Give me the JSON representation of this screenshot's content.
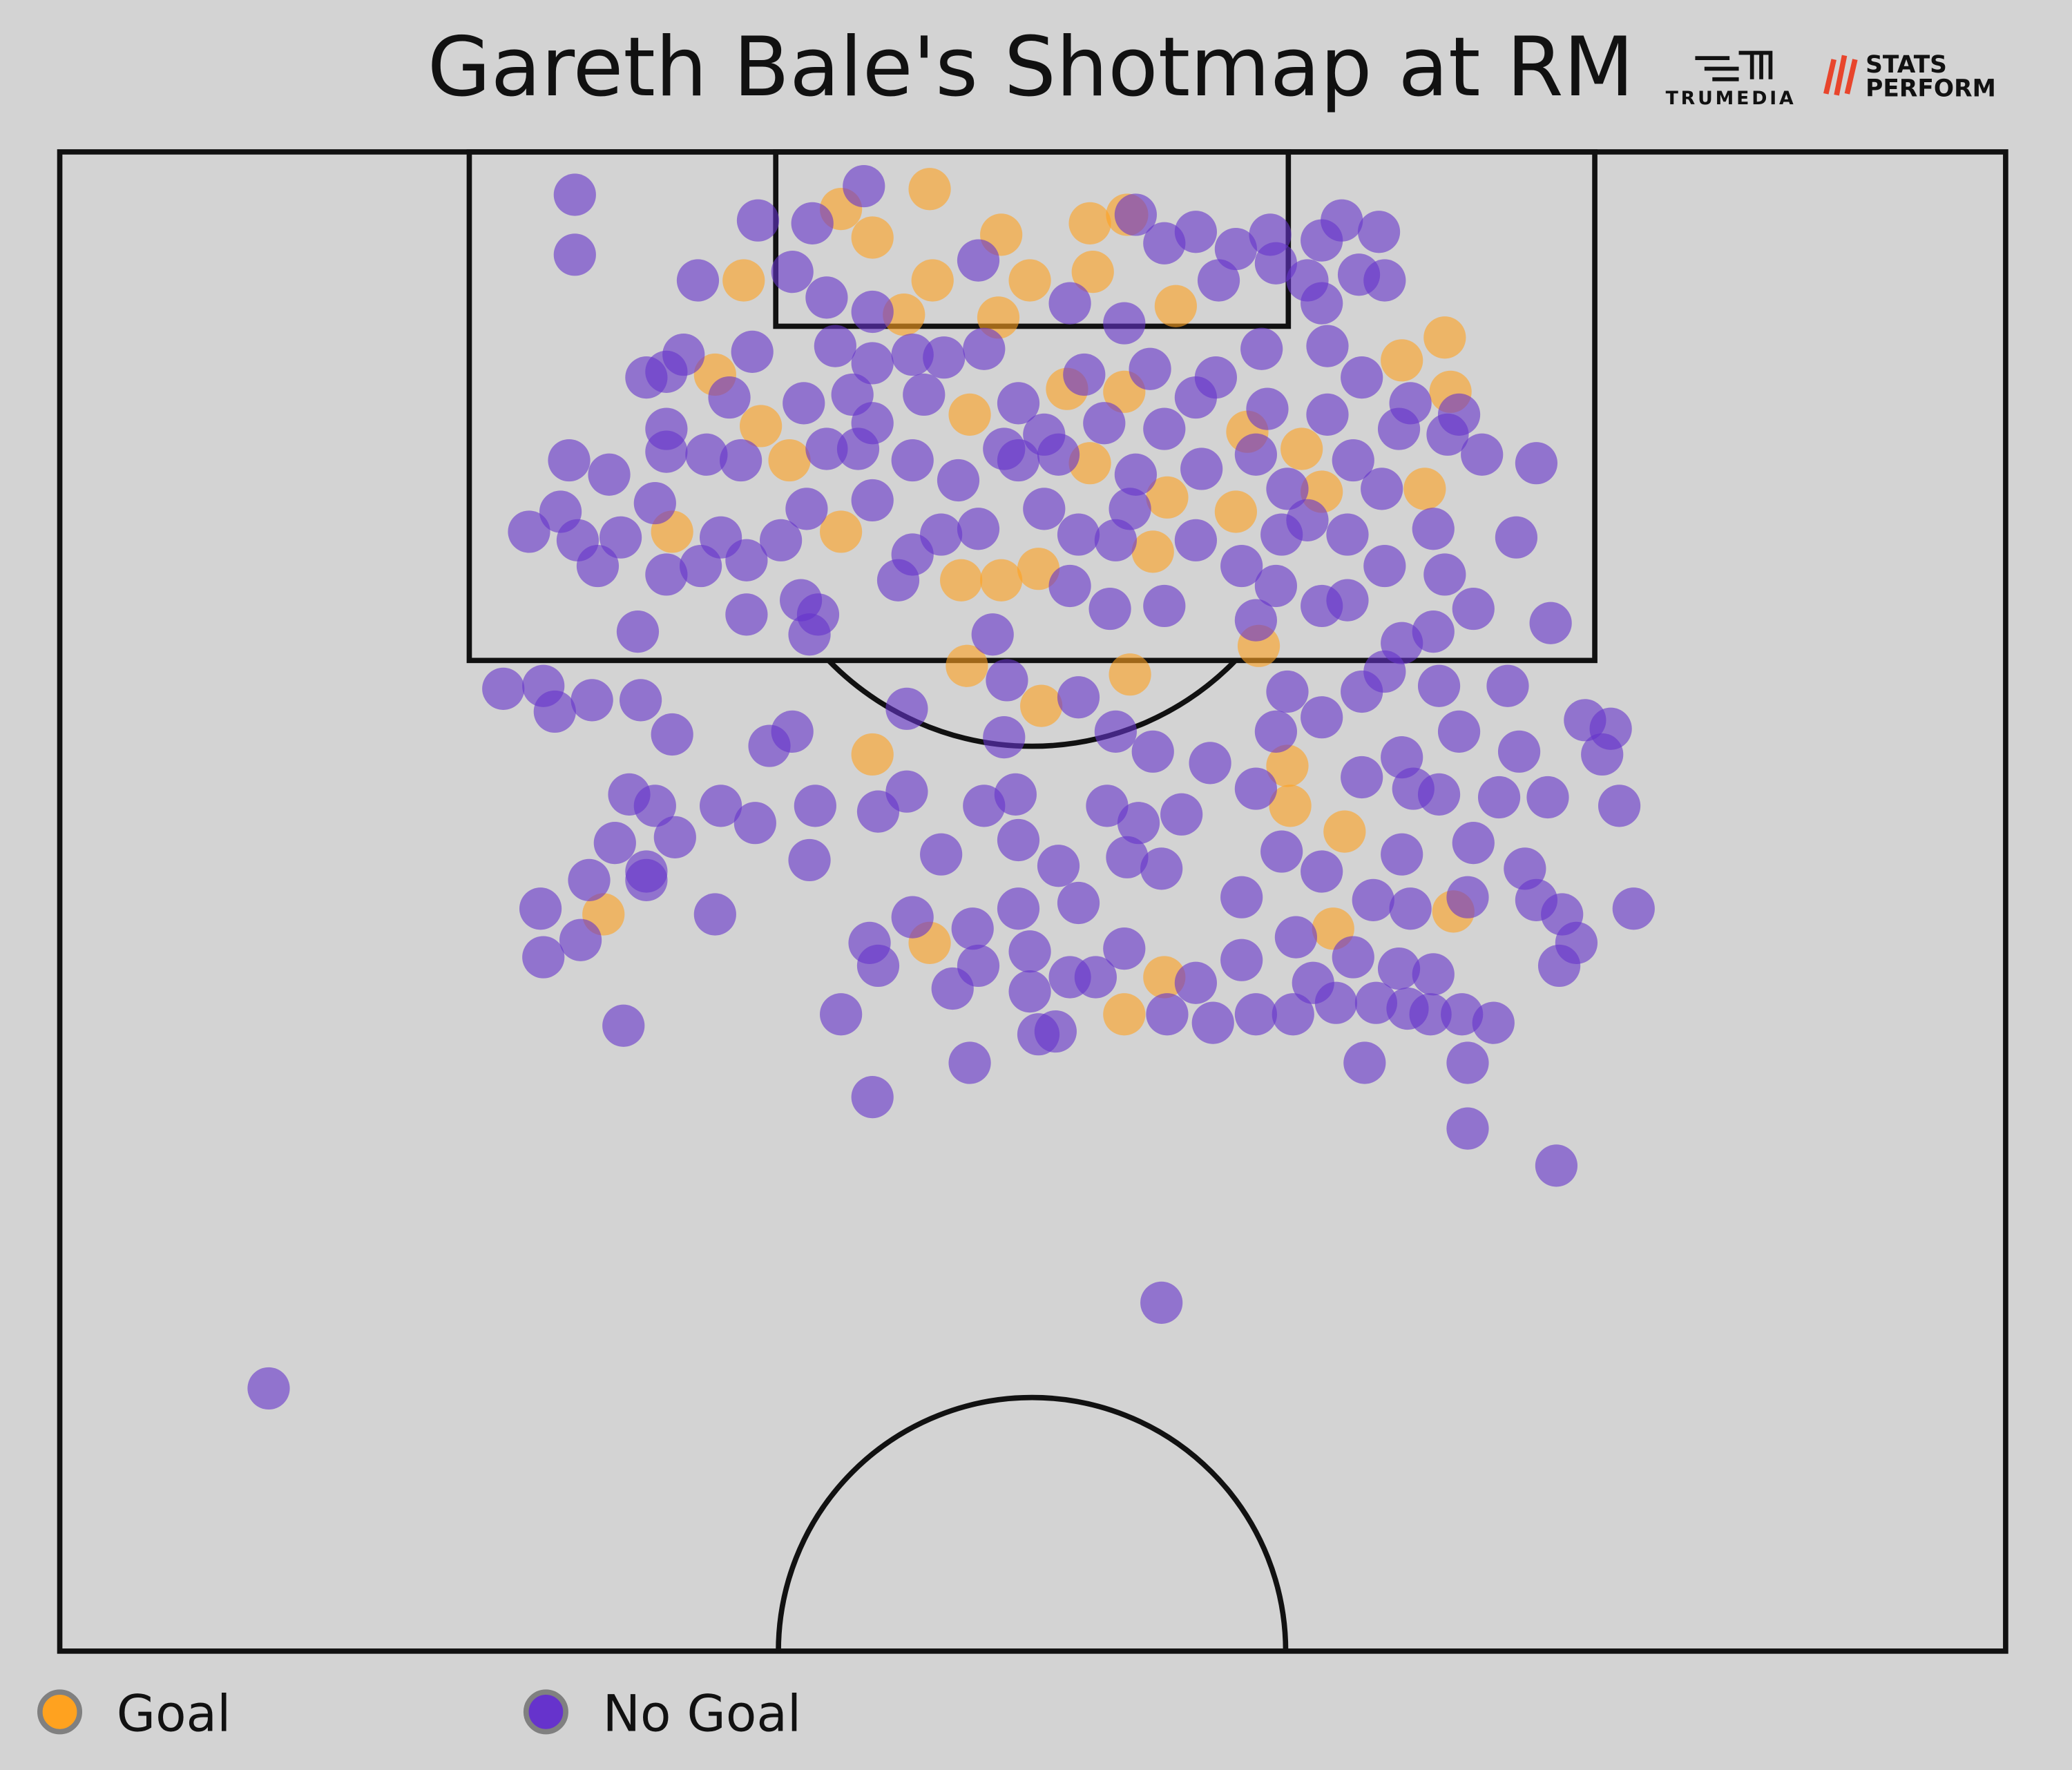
{
  "chart_data": {
    "type": "scatter",
    "title": "Gareth Bale's Shotmap at RM",
    "logo_texts": [
      "TRUMEDIA",
      "STATS",
      "PERFORM"
    ],
    "xlim": [
      0,
      68
    ],
    "ylim": [
      0,
      52.5
    ],
    "series": [
      {
        "name": "Goal",
        "color": "#ffa21f",
        "x": [
          30.4,
          27.3,
          28.4,
          32.9,
          36.0,
          37.3,
          30.5,
          33.9,
          36.1,
          23.9,
          29.5,
          32.8,
          39.0,
          48.4,
          46.9,
          48.6,
          22.9,
          24.5,
          25.5,
          31.8,
          35.2,
          37.2,
          41.5,
          43.4,
          44.1,
          36.0,
          38.7,
          41.1,
          47.7,
          21.4,
          27.3,
          31.5,
          32.9,
          34.2,
          38.2,
          41.9,
          31.7,
          37.4,
          28.4,
          42.9,
          43.0,
          44.9,
          19.0,
          30.4,
          44.5,
          38.6,
          37.2,
          48.7,
          34.3
        ],
        "y": [
          1.3,
          2.0,
          3.0,
          2.9,
          2.5,
          2.2,
          4.5,
          4.5,
          4.2,
          4.5,
          5.7,
          5.8,
          5.4,
          6.5,
          7.3,
          8.4,
          7.8,
          9.6,
          10.8,
          9.2,
          8.3,
          8.4,
          9.8,
          10.4,
          11.9,
          10.9,
          12.1,
          12.6,
          11.8,
          13.3,
          13.3,
          15.0,
          15.0,
          14.6,
          14.0,
          17.3,
          18.0,
          18.3,
          21.1,
          21.5,
          22.9,
          23.8,
          26.7,
          27.7,
          27.2,
          28.9,
          30.2,
          26.6,
          19.4
        ]
      },
      {
        "name": "No Goal",
        "color": "#6633cc",
        "x": [
          18.0,
          18.0,
          28.1,
          24.4,
          26.3,
          25.6,
          26.8,
          22.3,
          37.6,
          38.6,
          39.7,
          41.1,
          42.3,
          44.1,
          44.8,
          46.1,
          42.5,
          40.5,
          43.6,
          45.4,
          46.3,
          44.1,
          32.1,
          35.3,
          37.2,
          28.4,
          20.5,
          21.2,
          21.8,
          24.2,
          27.1,
          28.4,
          29.8,
          30.9,
          32.3,
          35.8,
          38.1,
          40.4,
          42.0,
          44.3,
          45.5,
          47.2,
          48.9,
          23.4,
          26.0,
          27.7,
          28.4,
          30.2,
          33.5,
          34.4,
          33.0,
          36.5,
          38.6,
          39.7,
          42.2,
          44.3,
          46.8,
          48.5,
          21.2,
          21.2,
          22.6,
          23.8,
          26.8,
          27.9,
          29.8,
          31.4,
          33.5,
          34.9,
          37.6,
          39.9,
          41.8,
          42.9,
          45.2,
          46.2,
          49.7,
          51.6,
          17.8,
          19.2,
          17.5,
          16.4,
          18.1,
          19.6,
          20.8,
          18.8,
          21.2,
          22.4,
          23.1,
          25.2,
          24.0,
          26.1,
          28.4,
          29.8,
          30.8,
          32.1,
          34.4,
          35.6,
          36.9,
          37.4,
          39.7,
          41.3,
          42.7,
          43.6,
          45.0,
          46.3,
          48.0,
          48.4,
          50.9,
          24.0,
          25.9,
          26.5,
          20.2,
          29.3,
          35.3,
          36.7,
          38.6,
          42.5,
          44.1,
          45.0,
          49.4,
          52.1,
          26.2,
          32.6,
          41.8,
          48.0,
          46.9,
          15.5,
          16.9,
          17.3,
          18.6,
          20.3,
          21.4,
          24.8,
          25.6,
          29.6,
          33.1,
          35.6,
          33.0,
          36.9,
          38.2,
          40.2,
          42.9,
          44.1,
          45.5,
          46.3,
          48.2,
          50.6,
          48.9,
          51.0,
          53.3,
          54.2,
          53.9,
          46.9,
          45.5,
          42.5,
          41.8,
          19.9,
          20.8,
          23.1,
          24.3,
          26.4,
          28.6,
          29.6,
          32.3,
          33.4,
          36.6,
          37.7,
          39.2,
          47.3,
          48.2,
          50.3,
          52.0,
          54.5,
          19.4,
          20.5,
          21.5,
          26.2,
          30.8,
          33.5,
          34.9,
          37.3,
          38.5,
          42.7,
          44.1,
          46.9,
          49.4,
          51.2,
          18.5,
          16.8,
          18.2,
          16.9,
          22.9,
          20.5,
          29.8,
          31.9,
          33.5,
          35.6,
          37.2,
          41.3,
          43.2,
          45.9,
          47.2,
          49.2,
          51.6,
          52.5,
          55.0,
          28.3,
          28.6,
          32.1,
          33.9,
          35.3,
          39.7,
          41.3,
          43.8,
          45.2,
          46.8,
          48.0,
          53.0,
          52.4,
          31.2,
          33.9,
          36.2,
          38.7,
          40.3,
          41.8,
          43.1,
          44.6,
          46.0,
          47.1,
          47.9,
          49.0,
          50.1,
          27.3,
          19.7,
          34.2,
          34.8,
          31.8,
          28.4,
          45.6,
          49.2,
          49.2,
          52.3,
          38.5,
          7.3
        ],
        "y": [
          1.5,
          3.6,
          1.2,
          2.4,
          2.5,
          4.2,
          5.1,
          4.5,
          2.2,
          3.2,
          2.8,
          3.4,
          2.9,
          3.1,
          2.4,
          2.8,
          3.9,
          4.5,
          4.5,
          4.3,
          4.5,
          5.3,
          3.8,
          5.3,
          6.0,
          5.6,
          7.9,
          7.7,
          7.1,
          7.0,
          6.8,
          7.4,
          7.1,
          7.2,
          6.9,
          7.8,
          7.6,
          7.9,
          6.9,
          6.8,
          7.9,
          8.8,
          9.2,
          8.6,
          8.8,
          8.5,
          9.5,
          8.5,
          8.8,
          9.9,
          10.4,
          9.5,
          9.7,
          8.6,
          9.0,
          9.2,
          9.7,
          9.9,
          9.7,
          10.5,
          10.6,
          10.8,
          10.4,
          10.4,
          10.8,
          11.5,
          10.8,
          10.6,
          11.3,
          11.1,
          10.6,
          11.8,
          10.8,
          11.8,
          10.6,
          10.9,
          10.8,
          11.3,
          12.6,
          13.3,
          13.6,
          13.5,
          12.3,
          14.5,
          14.8,
          14.5,
          13.5,
          13.6,
          14.3,
          12.5,
          12.2,
          14.1,
          13.4,
          13.2,
          12.5,
          13.4,
          13.6,
          12.5,
          13.6,
          14.5,
          13.4,
          12.9,
          13.4,
          14.5,
          13.2,
          14.8,
          13.5,
          16.2,
          15.7,
          16.2,
          16.8,
          15.0,
          15.2,
          16.0,
          15.9,
          15.2,
          15.9,
          15.7,
          16.0,
          16.5,
          16.9,
          16.9,
          16.4,
          16.8,
          17.2,
          18.8,
          18.7,
          19.6,
          19.2,
          19.2,
          20.4,
          20.8,
          20.3,
          19.5,
          18.5,
          19.1,
          20.5,
          20.3,
          21.0,
          21.4,
          18.9,
          19.8,
          18.9,
          18.2,
          18.7,
          18.7,
          20.3,
          21.0,
          19.9,
          20.2,
          21.1,
          21.2,
          21.9,
          20.3,
          22.3,
          22.5,
          22.9,
          22.9,
          23.5,
          22.9,
          23.1,
          22.4,
          22.9,
          22.5,
          22.9,
          23.5,
          23.2,
          22.3,
          22.5,
          22.6,
          22.6,
          22.9,
          24.2,
          25.2,
          24.0,
          24.8,
          24.6,
          24.1,
          25.0,
          24.7,
          25.1,
          24.5,
          25.2,
          24.6,
          24.2,
          25.1,
          25.5,
          26.5,
          27.6,
          28.2,
          26.7,
          25.5,
          26.8,
          27.2,
          26.5,
          26.3,
          27.9,
          26.1,
          27.5,
          26.2,
          26.5,
          26.1,
          26.2,
          26.7,
          26.5,
          27.7,
          28.5,
          28.5,
          28.0,
          28.9,
          29.1,
          28.3,
          29.1,
          28.2,
          28.6,
          28.8,
          27.7,
          28.5,
          29.3,
          29.4,
          28.9,
          30.2,
          30.5,
          30.2,
          30.2,
          29.8,
          29.8,
          30.0,
          30.2,
          30.2,
          30.5,
          30.2,
          30.6,
          30.9,
          30.8,
          31.9,
          33.1,
          31.9,
          31.9,
          34.2,
          35.5,
          40.3,
          43.3
        ]
      }
    ]
  }
}
